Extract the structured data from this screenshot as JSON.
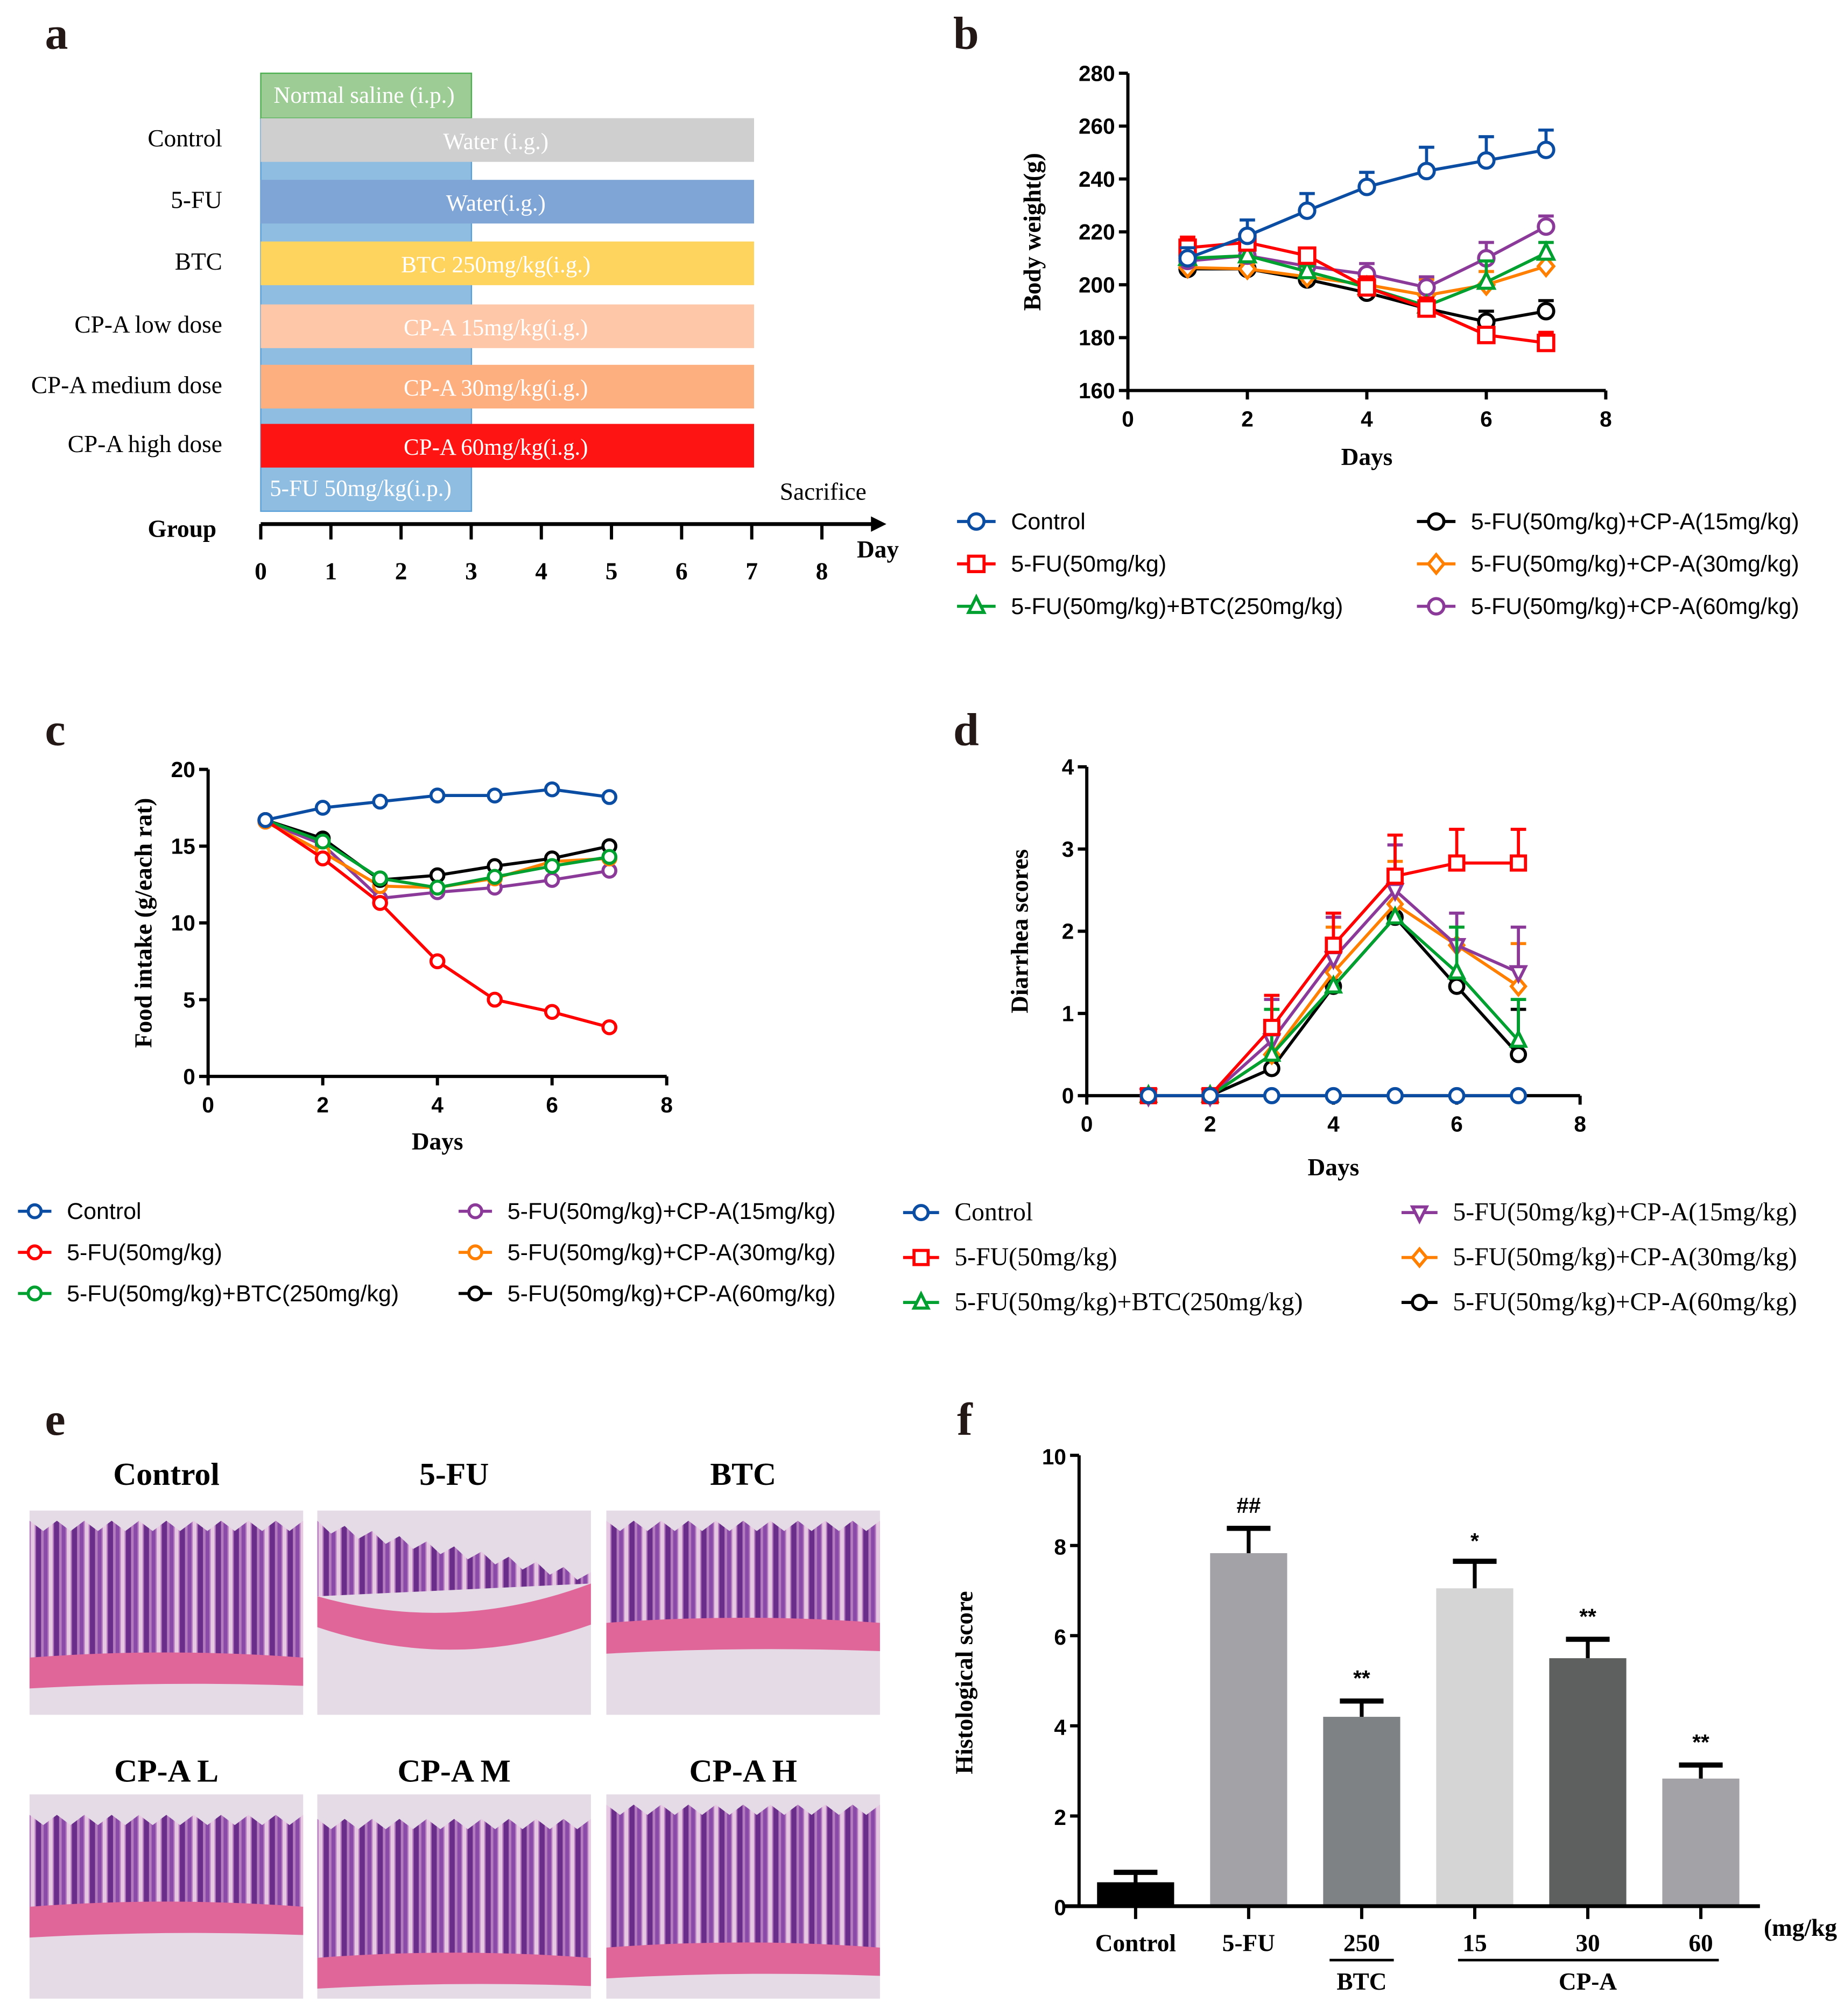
{
  "panel_letters": {
    "a": "a",
    "b": "b",
    "c": "c",
    "d": "d",
    "e": "e",
    "f": "f"
  },
  "panel_a": {
    "saline_label": "Normal saline (i.p.)",
    "fu_injection_label": "5-FU 50mg/kg(i.p.)",
    "sacrifice_label": "Sacrifice",
    "group_label": "Group",
    "day_label": "Day",
    "day_ticks": [
      "0",
      "1",
      "2",
      "3",
      "4",
      "5",
      "6",
      "7",
      "8"
    ],
    "rows": [
      {
        "group": "Control",
        "treatment": "Water (i.g.)",
        "color": "#cfcfcf"
      },
      {
        "group": "5-FU",
        "treatment": "Water(i.g.)",
        "color": "#7fa5d6"
      },
      {
        "group": "BTC",
        "treatment": "BTC 250mg/kg(i.g.)",
        "color": "#fed45f"
      },
      {
        "group": "CP-A low dose",
        "treatment": "CP-A 15mg/kg(i.g.)",
        "color": "#fdc7a8"
      },
      {
        "group": "CP-A medium dose",
        "treatment": "CP-A 30mg/kg(i.g.)",
        "color": "#fdaf80"
      },
      {
        "group": "CP-A high dose",
        "treatment": "CP-A 60mg/kg(i.g.)",
        "color": "#ff1414"
      }
    ],
    "saline_color": "#9dcc95",
    "fu_color": "#8fbde2"
  },
  "panel_e": {
    "titles": [
      "Control",
      "5-FU",
      "BTC",
      "CP-A L",
      "CP-A M",
      "CP-A H"
    ]
  },
  "chart_data": [
    {
      "id": "b",
      "type": "line",
      "xlabel": "Days",
      "ylabel": "Body weight(g)",
      "xlim": [
        0,
        8
      ],
      "ylim": [
        160,
        280
      ],
      "xticks": [
        "0",
        "2",
        "4",
        "6",
        "8"
      ],
      "yticks": [
        "160",
        "180",
        "200",
        "220",
        "240",
        "260",
        "280"
      ],
      "x": [
        1,
        2,
        3,
        4,
        5,
        6,
        7
      ],
      "legend_placement": "bottom",
      "series": [
        {
          "name": "5-FU(50mg/kg)+CP-A(15mg/kg)",
          "color": "#000000",
          "marker": "circle",
          "values": [
            206,
            206,
            202,
            197,
            191,
            186,
            190
          ],
          "err": [
            3,
            3,
            2,
            2,
            2,
            4,
            4
          ]
        },
        {
          "name": "5-FU(50mg/kg)+CP-A(30mg/kg)",
          "color": "#ff8000",
          "marker": "diamond",
          "values": [
            206.5,
            206,
            203,
            200,
            196,
            200,
            207
          ],
          "err": [
            3,
            2,
            2,
            3,
            6,
            5,
            3
          ]
        },
        {
          "name": "5-FU(50mg/kg)+CP-A(60mg/kg)",
          "color": "#8b3a9a",
          "marker": "circle",
          "values": [
            209,
            211,
            207,
            204,
            199,
            210,
            222
          ],
          "err": [
            3,
            3,
            3,
            4,
            4,
            6,
            4
          ]
        },
        {
          "name": "5-FU(50mg/kg)+BTC(250mg/kg)",
          "color": "#00a030",
          "marker": "triangle",
          "values": [
            210,
            211,
            205,
            199,
            192,
            201,
            212
          ],
          "err": [
            2,
            2,
            2,
            3,
            3,
            8,
            4
          ]
        },
        {
          "name": "5-FU(50mg/kg)",
          "color": "#ff0000",
          "marker": "square",
          "values": [
            214,
            216,
            211,
            199,
            191,
            181,
            178
          ],
          "err": [
            4,
            3,
            2,
            4,
            4,
            2,
            4
          ]
        },
        {
          "name": "Control",
          "color": "#0a4da2",
          "marker": "circle",
          "values": [
            210,
            218.5,
            228,
            237,
            243,
            247,
            251
          ],
          "err": [
            4,
            6,
            6.5,
            5.5,
            9,
            9,
            7.5
          ]
        }
      ],
      "legend_order": [
        5,
        4,
        3,
        0,
        1,
        2
      ]
    },
    {
      "id": "c",
      "type": "line",
      "xlabel": "Days",
      "ylabel": "Food intake (g/each rat)",
      "xlim": [
        0,
        8
      ],
      "ylim": [
        0,
        20
      ],
      "xticks": [
        "0",
        "2",
        "4",
        "6",
        "8"
      ],
      "yticks": [
        "0",
        "5",
        "10",
        "15",
        "20"
      ],
      "x": [
        1,
        2,
        3,
        4,
        5,
        6,
        7
      ],
      "legend_placement": "bottom",
      "series": [
        {
          "name": "5-FU(50mg/kg)+CP-A(15mg/kg)",
          "color": "#8b3a9a",
          "marker": "circle",
          "values": [
            16.6,
            15.1,
            11.6,
            12.0,
            12.3,
            12.8,
            13.4
          ]
        },
        {
          "name": "5-FU(50mg/kg)+CP-A(30mg/kg)",
          "color": "#ff8000",
          "marker": "circle",
          "values": [
            16.6,
            14.6,
            12.4,
            12.3,
            12.9,
            14.0,
            14.2
          ]
        },
        {
          "name": "5-FU(50mg/kg)+CP-A(60mg/kg)",
          "color": "#000000",
          "marker": "circle",
          "values": [
            16.7,
            15.5,
            12.8,
            13.1,
            13.7,
            14.2,
            15.0
          ]
        },
        {
          "name": "5-FU(50mg/kg)+BTC(250mg/kg)",
          "color": "#00a030",
          "marker": "circle",
          "values": [
            16.7,
            15.3,
            12.9,
            12.3,
            13.0,
            13.7,
            14.3
          ]
        },
        {
          "name": "5-FU(50mg/kg)",
          "color": "#ff0000",
          "marker": "circle",
          "values": [
            16.7,
            14.2,
            11.3,
            7.5,
            5.0,
            4.2,
            3.2
          ]
        },
        {
          "name": "Control",
          "color": "#0a4da2",
          "marker": "circle",
          "values": [
            16.7,
            17.5,
            17.9,
            18.3,
            18.3,
            18.7,
            18.2
          ]
        }
      ],
      "legend_order": [
        5,
        4,
        3,
        0,
        1,
        2
      ]
    },
    {
      "id": "d",
      "type": "line",
      "xlabel": "Days",
      "ylabel": "Diarrhea scores",
      "xlim": [
        0,
        8
      ],
      "ylim": [
        0,
        4
      ],
      "xticks": [
        "0",
        "2",
        "4",
        "6",
        "8"
      ],
      "yticks": [
        "0",
        "1",
        "2",
        "3",
        "4"
      ],
      "x": [
        1,
        2,
        3,
        4,
        5,
        6,
        7
      ],
      "legend_placement": "bottom",
      "series": [
        {
          "name": "5-FU(50mg/kg)+CP-A(60mg/kg)",
          "color": "#000000",
          "marker": "circle",
          "values": [
            0,
            0,
            0.33,
            1.33,
            2.17,
            1.33,
            0.5
          ],
          "err": [
            0,
            0,
            0,
            0,
            0,
            0,
            0.55
          ]
        },
        {
          "name": "5-FU(50mg/kg)+CP-A(30mg/kg)",
          "color": "#ff8000",
          "marker": "diamond",
          "values": [
            0,
            0,
            0.5,
            1.5,
            2.33,
            1.83,
            1.33
          ],
          "err": [
            0,
            0,
            0,
            0.55,
            0.52,
            0,
            0.52
          ]
        },
        {
          "name": "5-FU(50mg/kg)+CP-A(15mg/kg)",
          "color": "#8b3a9a",
          "marker": "triangle-down",
          "values": [
            0,
            0,
            0.67,
            1.67,
            2.5,
            1.83,
            1.5
          ],
          "err": [
            0,
            0,
            0.5,
            0.5,
            0.55,
            0.39,
            0.55
          ]
        },
        {
          "name": "5-FU(50mg/kg)+BTC(250mg/kg)",
          "color": "#00a030",
          "marker": "triangle",
          "values": [
            0,
            0,
            0.5,
            1.33,
            2.17,
            1.5,
            0.67
          ],
          "err": [
            0,
            0,
            0.55,
            0,
            0,
            0.55,
            0.5
          ]
        },
        {
          "name": "5-FU(50mg/kg)",
          "color": "#ff0000",
          "marker": "square",
          "values": [
            0,
            0,
            0.83,
            1.83,
            2.67,
            2.83,
            2.83
          ],
          "err": [
            0,
            0,
            0.39,
            0.39,
            0.5,
            0.41,
            0.41
          ]
        },
        {
          "name": "Control",
          "color": "#0a4da2",
          "marker": "circle",
          "values": [
            0,
            0,
            0,
            0,
            0,
            0,
            0
          ],
          "err": [
            0,
            0,
            0,
            0,
            0,
            0,
            0
          ]
        }
      ],
      "legend_order": [
        5,
        4,
        3,
        2,
        1,
        0
      ]
    },
    {
      "id": "f",
      "type": "bar",
      "ylabel": "Histological score",
      "ylim": [
        0,
        10
      ],
      "yticks": [
        "0",
        "2",
        "4",
        "6",
        "8",
        "10"
      ],
      "categories": [
        "Control",
        "5-FU",
        "250",
        "15",
        "30",
        "60"
      ],
      "unit_label": "(mg/kg)",
      "group_labels": {
        "btc": "BTC",
        "cpa": "CP-A"
      },
      "values": [
        0.53,
        7.83,
        4.2,
        7.05,
        5.5,
        2.83
      ],
      "err": [
        0.22,
        0.55,
        0.35,
        0.6,
        0.42,
        0.3
      ],
      "significance": [
        "",
        "##",
        "**",
        "*",
        "**",
        "**"
      ],
      "colors": [
        "#000000",
        "#a3a2a7",
        "#7f8284",
        "#d5d5d5",
        "#5d605f",
        "#a3a2a7"
      ]
    }
  ]
}
